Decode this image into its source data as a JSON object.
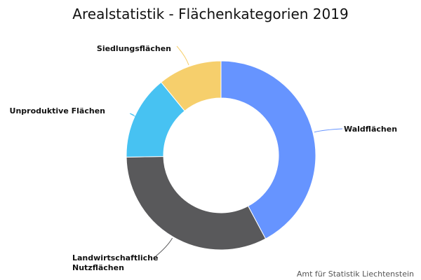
{
  "chart_data": {
    "type": "pie",
    "variant": "donut",
    "title": "Arealstatistik - Flächenkategorien 2019",
    "categories": [
      "Waldflächen",
      "Landwirtschaftliche Nutzflächen",
      "Unproduktive Flächen",
      "Siedlungsflächen"
    ],
    "values": [
      42.2,
      32.5,
      14.4,
      10.9
    ],
    "colors": [
      "#6694ff",
      "#59595b",
      "#47c2f2",
      "#f6cf6c"
    ],
    "credit": "Amt für Statistik Liechtenstein"
  }
}
